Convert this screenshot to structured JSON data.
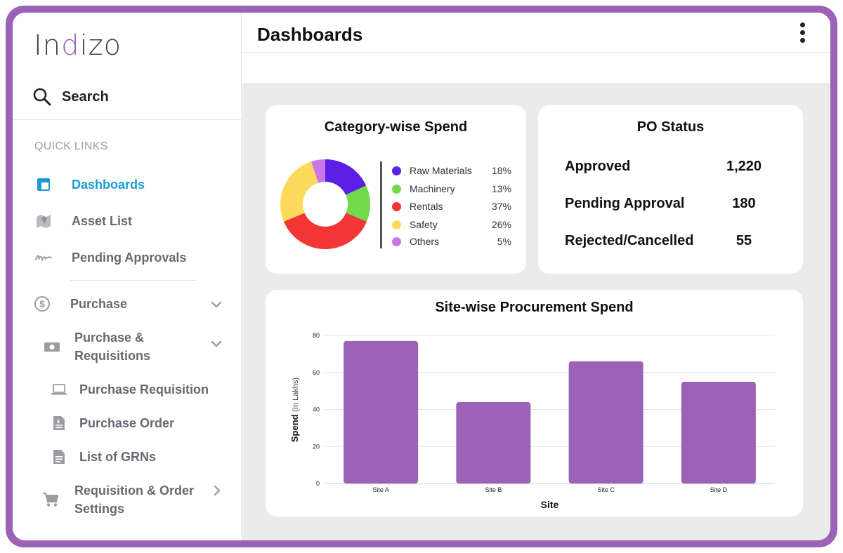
{
  "sidebar": {
    "logo": {
      "prefix": "In",
      "accent": "d",
      "suffix": "izo"
    },
    "search_label": "Search",
    "quick_links_label": "QUICK LINKS",
    "items": {
      "dashboards": "Dashboards",
      "asset_list": "Asset List",
      "pending_approvals": "Pending Approvals",
      "purchase": "Purchase",
      "purchase_requisitions_line1": "Purchase &",
      "purchase_requisitions_line2": "Requisitions",
      "purchase_requisition": "Purchase Requisition",
      "purchase_order": "Purchase Order",
      "list_of_grns": "List of GRNs",
      "req_order_settings_line1": "Requisition & Order",
      "req_order_settings_line2": "Settings"
    }
  },
  "header": {
    "title": "Dashboards"
  },
  "colors": {
    "frame": "#9b62b5",
    "active": "#1a9bd7",
    "bar": "#9b62b5"
  },
  "category_card": {
    "title": "Category-wise Spend"
  },
  "po_status": {
    "title": "PO Status",
    "rows": [
      {
        "label": "Approved",
        "value": "1,220"
      },
      {
        "label": "Pending Approval",
        "value": "180"
      },
      {
        "label": "Rejected/Cancelled",
        "value": "55"
      }
    ]
  },
  "site_card": {
    "title": "Site-wise Procurement Spend"
  },
  "chart_data": [
    {
      "type": "pie",
      "title": "Category-wise Spend",
      "donut": true,
      "categories": [
        "Raw Materials",
        "Machinery",
        "Rentals",
        "Safety",
        "Others"
      ],
      "values": [
        18,
        13,
        37,
        26,
        5
      ],
      "labels": [
        "18%",
        "13%",
        "37%",
        "26%",
        "5%"
      ],
      "colors": [
        "#5b1fe8",
        "#72d94c",
        "#f23535",
        "#fdd95c",
        "#c977e6"
      ],
      "legend": "right"
    },
    {
      "type": "bar",
      "title": "Site-wise Procurement Spend",
      "categories": [
        "Site A",
        "Site B",
        "Site C",
        "Site D"
      ],
      "values": [
        77,
        44,
        66,
        55
      ],
      "xlabel": "Site",
      "ylabel_main": "Spend",
      "ylabel_unit": "(In Lakhs)",
      "ylim": [
        0,
        80
      ],
      "yticks": [
        0,
        20,
        40,
        60,
        80
      ],
      "grid": true,
      "color": "#9b62b5"
    }
  ]
}
